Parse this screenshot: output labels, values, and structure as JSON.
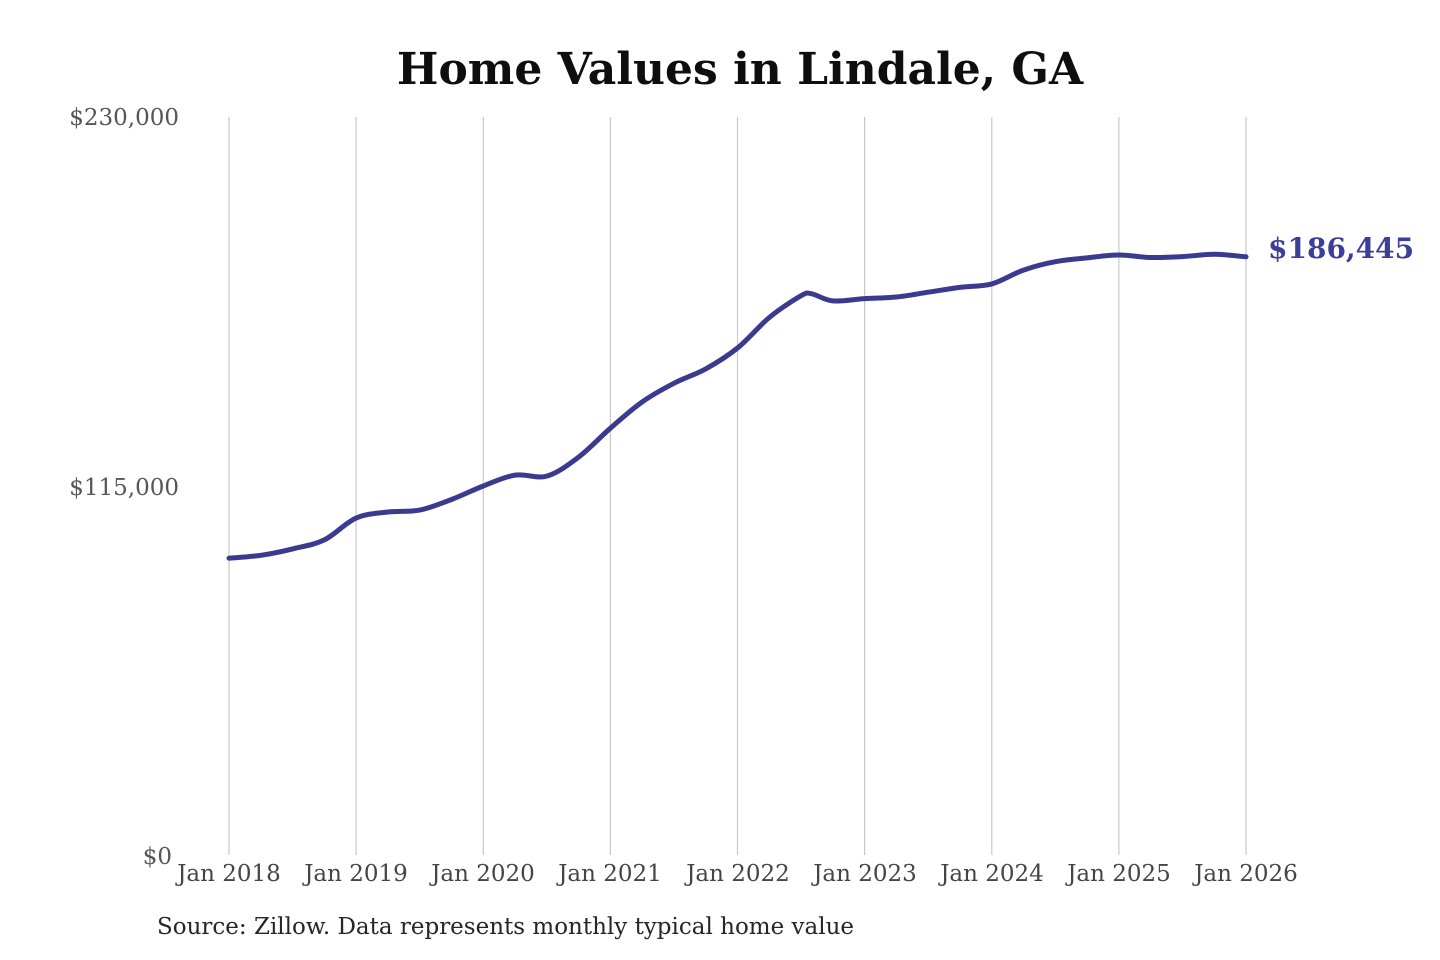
{
  "chart_data": {
    "type": "line",
    "title": "Home Values in Lindale, GA",
    "xlabel": "",
    "ylabel": "",
    "ylim": [
      0,
      230000
    ],
    "grid": "vertical-only",
    "legend": "none",
    "yticks": [
      {
        "label": "$230,000",
        "value": 230000
      },
      {
        "label": "$115,000",
        "value": 115000
      },
      {
        "label": "$0",
        "value": 0
      }
    ],
    "xticklabels": [
      "Jan 2018",
      "Jan 2019",
      "Jan 2020",
      "Jan 2021",
      "Jan 2022",
      "Jan 2023",
      "Jan 2024",
      "Jan 2025",
      "Jan 2026"
    ],
    "end_label": "$186,445",
    "end_value": 186445,
    "source_note": "Source: Zillow. Data represents monthly typical home value",
    "series": [
      {
        "name": "Typical home value",
        "color": "#3a3a8f",
        "points": [
          [
            "2018-01",
            92500
          ],
          [
            "2018-04",
            93400
          ],
          [
            "2018-07",
            95400
          ],
          [
            "2018-10",
            98200
          ],
          [
            "2019-01",
            105000
          ],
          [
            "2019-04",
            106900
          ],
          [
            "2019-07",
            107500
          ],
          [
            "2019-10",
            110800
          ],
          [
            "2020-01",
            115000
          ],
          [
            "2020-04",
            118400
          ],
          [
            "2020-07",
            118100
          ],
          [
            "2020-10",
            124000
          ],
          [
            "2021-01",
            133000
          ],
          [
            "2021-04",
            141200
          ],
          [
            "2021-07",
            147000
          ],
          [
            "2021-10",
            151500
          ],
          [
            "2022-01",
            158000
          ],
          [
            "2022-04",
            167500
          ],
          [
            "2022-07",
            174300
          ],
          [
            "2022-08",
            174900
          ],
          [
            "2022-10",
            172700
          ],
          [
            "2023-01",
            173400
          ],
          [
            "2023-04",
            173900
          ],
          [
            "2023-07",
            175400
          ],
          [
            "2023-10",
            176900
          ],
          [
            "2024-01",
            178000
          ],
          [
            "2024-04",
            182300
          ],
          [
            "2024-07",
            184900
          ],
          [
            "2024-10",
            186100
          ],
          [
            "2025-01",
            187000
          ],
          [
            "2025-04",
            186200
          ],
          [
            "2025-07",
            186500
          ],
          [
            "2025-10",
            187200
          ],
          [
            "2026-01",
            186445
          ]
        ]
      }
    ],
    "colors": {
      "background": "#ffffff",
      "line": "#3a3a8f",
      "end_label": "#3a3f99",
      "gridline": "#c9c9c9",
      "title": "#0e0e0e",
      "ytick": "#565656",
      "xtick": "#454545",
      "source": "#262626"
    }
  }
}
